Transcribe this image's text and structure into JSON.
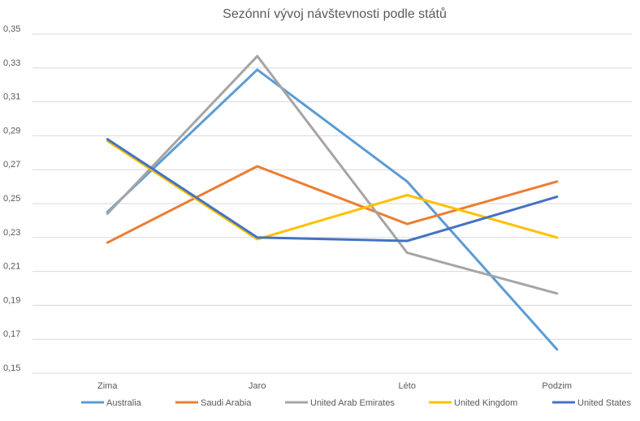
{
  "chart_data": {
    "type": "line",
    "title": "Sezónní vývoj návštevnosti podle států",
    "xlabel": "",
    "ylabel": "",
    "categories": [
      "Zima",
      "Jaro",
      "Léto",
      "Podzim"
    ],
    "ylim": [
      0.15,
      0.35
    ],
    "yticks": [
      "0,15",
      "0,17",
      "0,19",
      "0,21",
      "0,23",
      "0,25",
      "0,27",
      "0,29",
      "0,31",
      "0,33",
      "0,35"
    ],
    "grid": true,
    "legend_position": "bottom",
    "series": [
      {
        "name": "Australia",
        "color": "#5b9bd5",
        "values": [
          0.245,
          0.329,
          0.263,
          0.164
        ]
      },
      {
        "name": "Saudi Arabia",
        "color": "#ed7d31",
        "values": [
          0.227,
          0.272,
          0.238,
          0.263
        ]
      },
      {
        "name": "United Arab Emirates",
        "color": "#a5a5a5",
        "values": [
          0.244,
          0.337,
          0.221,
          0.197
        ]
      },
      {
        "name": "United Kingdom",
        "color": "#ffc000",
        "values": [
          0.287,
          0.229,
          0.255,
          0.23
        ]
      },
      {
        "name": "United States",
        "color": "#4472c4",
        "values": [
          0.288,
          0.23,
          0.228,
          0.254
        ]
      }
    ]
  }
}
